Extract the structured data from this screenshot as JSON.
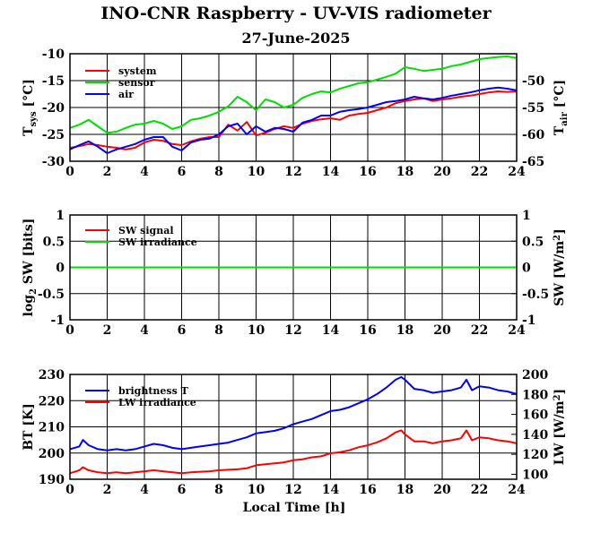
{
  "figure": {
    "title": "INO-CNR Raspberry - UV-VIS radiometer",
    "date": "27-June-2025",
    "xlabel": "Local Time [h]"
  },
  "chart_data": [
    {
      "type": "line",
      "x_ticks": [
        "0",
        "2",
        "4",
        "6",
        "8",
        "10",
        "12",
        "14",
        "16",
        "18",
        "20",
        "22",
        "24"
      ],
      "xlim": [
        0,
        24
      ],
      "ylabel_left": {
        "main": "T",
        "sub": "sys",
        "unit": " [°C]"
      },
      "ylim_left": [
        -30,
        -10
      ],
      "yticks_left": [
        "-10",
        "-15",
        "-20",
        "-25",
        "-30"
      ],
      "ylabel_right": {
        "main": "T",
        "sub": "air",
        "unit": " [°C]"
      },
      "ylim_right": [
        -65,
        -45
      ],
      "yticks_right": [
        "-50",
        "-55",
        "-60",
        "-65"
      ],
      "grid": true,
      "legend": "top-left",
      "series": [
        {
          "name": "system",
          "color": "#ff0000",
          "axis": "left",
          "x": [
            0,
            0.5,
            1,
            1.5,
            2,
            2.5,
            3,
            3.5,
            4,
            4.5,
            5,
            5.5,
            6,
            6.5,
            7,
            7.5,
            8,
            8.5,
            9,
            9.5,
            10,
            10.5,
            11,
            11.5,
            12,
            12.5,
            13,
            13.5,
            14,
            14.5,
            15,
            15.5,
            16,
            16.5,
            17,
            17.5,
            18,
            18.5,
            19,
            19.5,
            20,
            20.5,
            21,
            21.5,
            22,
            22.5,
            23,
            23.5,
            24
          ],
          "y": [
            -27.5,
            -27.2,
            -26.8,
            -27.0,
            -27.3,
            -27.5,
            -27.8,
            -27.5,
            -26.5,
            -26.0,
            -26.2,
            -26.8,
            -27.0,
            -26.3,
            -25.8,
            -25.5,
            -25.5,
            -23.2,
            -24.3,
            -22.7,
            -25.2,
            -24.7,
            -24.0,
            -23.5,
            -23.8,
            -23.0,
            -22.5,
            -22.2,
            -22.0,
            -22.3,
            -21.5,
            -21.2,
            -21.0,
            -20.5,
            -20.0,
            -19.2,
            -18.8,
            -18.5,
            -18.3,
            -18.8,
            -18.5,
            -18.3,
            -18.0,
            -17.8,
            -17.5,
            -17.2,
            -17.0,
            -17.1,
            -17.0
          ]
        },
        {
          "name": "sensor",
          "color": "#00dd00",
          "axis": "left",
          "x": [
            0,
            0.5,
            1,
            1.5,
            2,
            2.5,
            3,
            3.5,
            4,
            4.5,
            5,
            5.5,
            6,
            6.5,
            7,
            7.5,
            8,
            8.5,
            9,
            9.5,
            10,
            10.5,
            11,
            11.5,
            12,
            12.5,
            13,
            13.5,
            14,
            14.5,
            15,
            15.5,
            16,
            16.5,
            17,
            17.5,
            18,
            18.5,
            19,
            19.5,
            20,
            20.5,
            21,
            21.5,
            22,
            22.5,
            23,
            23.5,
            24
          ],
          "y": [
            -23.8,
            -23.2,
            -22.3,
            -23.5,
            -24.7,
            -24.5,
            -23.8,
            -23.2,
            -23.0,
            -22.5,
            -23.0,
            -24.0,
            -23.5,
            -22.3,
            -22.0,
            -21.5,
            -20.8,
            -19.8,
            -18.0,
            -19.0,
            -20.5,
            -18.5,
            -19.0,
            -20.0,
            -19.5,
            -18.2,
            -17.5,
            -17.0,
            -17.2,
            -16.5,
            -16.0,
            -15.5,
            -15.3,
            -14.8,
            -14.3,
            -13.7,
            -12.5,
            -12.8,
            -13.2,
            -13.0,
            -12.8,
            -12.3,
            -12.0,
            -11.5,
            -11.0,
            -10.8,
            -10.6,
            -10.5,
            -10.8
          ]
        },
        {
          "name": "air",
          "color": "#0000ff",
          "axis": "right",
          "x": [
            0,
            0.5,
            1,
            1.5,
            2,
            2.5,
            3,
            3.5,
            4,
            4.5,
            5,
            5.5,
            6,
            6.5,
            7,
            7.5,
            8,
            8.5,
            9,
            9.5,
            10,
            10.5,
            11,
            11.5,
            12,
            12.5,
            13,
            13.5,
            14,
            14.5,
            15,
            15.5,
            16,
            16.5,
            17,
            17.5,
            18,
            18.5,
            19,
            19.5,
            20,
            20.5,
            21,
            21.5,
            22,
            22.5,
            23,
            23.5,
            24
          ],
          "y": [
            -62.8,
            -62.0,
            -61.3,
            -62.3,
            -63.5,
            -62.8,
            -62.3,
            -61.8,
            -61.0,
            -60.5,
            -60.5,
            -62.3,
            -63.0,
            -61.5,
            -61.0,
            -60.8,
            -60.0,
            -58.5,
            -58.0,
            -60.0,
            -58.5,
            -59.5,
            -58.8,
            -59.0,
            -59.5,
            -57.8,
            -57.3,
            -56.5,
            -56.5,
            -55.8,
            -55.5,
            -55.3,
            -55.0,
            -54.5,
            -54.0,
            -53.8,
            -53.5,
            -53.0,
            -53.3,
            -53.5,
            -53.2,
            -52.8,
            -52.5,
            -52.2,
            -51.8,
            -51.5,
            -51.3,
            -51.5,
            -51.8
          ]
        }
      ]
    },
    {
      "type": "line",
      "x_ticks": [
        "0",
        "2",
        "4",
        "6",
        "8",
        "10",
        "12",
        "14",
        "16",
        "18",
        "20",
        "22",
        "24"
      ],
      "xlim": [
        0,
        24
      ],
      "ylabel_left": {
        "main": "log",
        "sub": "2",
        "unit": " SW [bits]"
      },
      "ylim_left": [
        -1,
        1
      ],
      "yticks_left": [
        "1",
        "0.5",
        "0",
        "-0.5",
        "-1"
      ],
      "ylabel_right": {
        "main": "SW [W/m",
        "sup": "2",
        "unit": "]"
      },
      "ylim_right": [
        -1,
        1
      ],
      "yticks_right": [
        "1",
        "0.5",
        "0",
        "-0.5",
        "-1"
      ],
      "grid": true,
      "legend": "top-left",
      "series": [
        {
          "name": "SW signal",
          "color": "#ff0000",
          "axis": "left",
          "x": [
            0,
            24
          ],
          "y": [
            0,
            0
          ]
        },
        {
          "name": "SW irradiance",
          "color": "#00dd00",
          "axis": "right",
          "x": [
            0,
            24
          ],
          "y": [
            0,
            0
          ]
        }
      ]
    },
    {
      "type": "line",
      "x_ticks": [
        "0",
        "2",
        "4",
        "6",
        "8",
        "10",
        "12",
        "14",
        "16",
        "18",
        "20",
        "22",
        "24"
      ],
      "xlim": [
        0,
        24
      ],
      "ylabel_left": {
        "main": "BT [K]"
      },
      "ylim_left": [
        190,
        230
      ],
      "yticks_left": [
        "230",
        "220",
        "210",
        "200",
        "190"
      ],
      "ylabel_right": {
        "main": "LW [W/m",
        "sup": "2",
        "unit": "]"
      },
      "ylim_right": [
        95,
        200
      ],
      "yticks_right": [
        "200",
        "180",
        "160",
        "140",
        "120",
        "100"
      ],
      "grid": true,
      "legend": "top-left",
      "series": [
        {
          "name": "brightness T",
          "color": "#0000ff",
          "axis": "left",
          "x": [
            0,
            0.5,
            0.7,
            1,
            1.5,
            2,
            2.5,
            3,
            3.5,
            4,
            4.5,
            5,
            5.5,
            6,
            6.5,
            7,
            7.5,
            8,
            8.5,
            9,
            9.5,
            10,
            10.5,
            11,
            11.5,
            12,
            12.5,
            13,
            13.5,
            14,
            14.5,
            15,
            15.5,
            16,
            16.5,
            17,
            17.5,
            17.8,
            18,
            18.5,
            19,
            19.5,
            20,
            20.5,
            21,
            21.3,
            21.6,
            22,
            22.5,
            23,
            23.5,
            24
          ],
          "y": [
            201.5,
            202.5,
            205,
            203,
            201.5,
            201,
            201.5,
            201,
            201.5,
            202.5,
            203.5,
            203,
            202,
            201.5,
            202,
            202.5,
            203,
            203.5,
            204,
            205,
            206,
            207.5,
            208,
            208.5,
            209.5,
            211,
            212,
            213,
            214.5,
            216,
            216.5,
            217.5,
            219,
            220.5,
            222.5,
            225,
            228,
            229,
            228,
            224.5,
            224,
            223,
            223.5,
            224,
            225,
            228,
            224,
            225.5,
            225,
            224,
            223.5,
            222.5
          ]
        },
        {
          "name": "LW irradiance",
          "color": "#ff0000",
          "axis": "right",
          "x": [
            0,
            0.5,
            0.7,
            1,
            1.5,
            2,
            2.5,
            3,
            3.5,
            4,
            4.5,
            5,
            5.5,
            6,
            6.5,
            7,
            7.5,
            8,
            8.5,
            9,
            9.5,
            10,
            10.5,
            11,
            11.5,
            12,
            12.5,
            13,
            13.5,
            14,
            14.5,
            15,
            15.5,
            16,
            16.5,
            17,
            17.5,
            17.8,
            18,
            18.5,
            19,
            19.5,
            20,
            20.5,
            21,
            21.3,
            21.6,
            22,
            22.5,
            23,
            23.5,
            24
          ],
          "y": [
            101,
            104,
            107,
            104,
            102,
            101,
            102,
            101,
            102,
            103,
            104,
            103,
            102,
            101,
            102,
            102.5,
            103,
            104,
            104.5,
            105,
            106,
            109,
            110,
            111,
            112,
            114,
            115,
            117,
            118,
            121,
            122,
            124,
            127,
            129,
            132,
            136,
            142,
            144,
            140,
            133,
            133,
            131,
            133,
            134,
            136,
            144,
            134,
            137,
            136,
            134,
            133,
            131
          ]
        }
      ]
    }
  ]
}
